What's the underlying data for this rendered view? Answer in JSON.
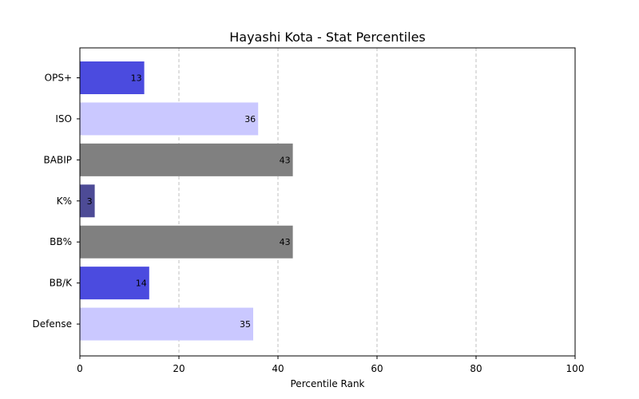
{
  "chart_data": {
    "type": "bar",
    "orientation": "horizontal",
    "title": "Hayashi Kota - Stat Percentiles",
    "xlabel": "Percentile Rank",
    "ylabel": "",
    "xlim": [
      0,
      100
    ],
    "xticks": [
      0,
      20,
      40,
      60,
      80,
      100
    ],
    "grid": "x-dashed",
    "categories": [
      "OPS+",
      "ISO",
      "BABIP",
      "K%",
      "BB%",
      "BB/K",
      "Defense"
    ],
    "values": [
      13,
      36,
      43,
      3,
      43,
      14,
      35
    ],
    "colors": [
      "#4b4bdf",
      "#cac8ff",
      "#808080",
      "#4d4b96",
      "#808080",
      "#4b4bdf",
      "#cac8ff"
    ]
  }
}
